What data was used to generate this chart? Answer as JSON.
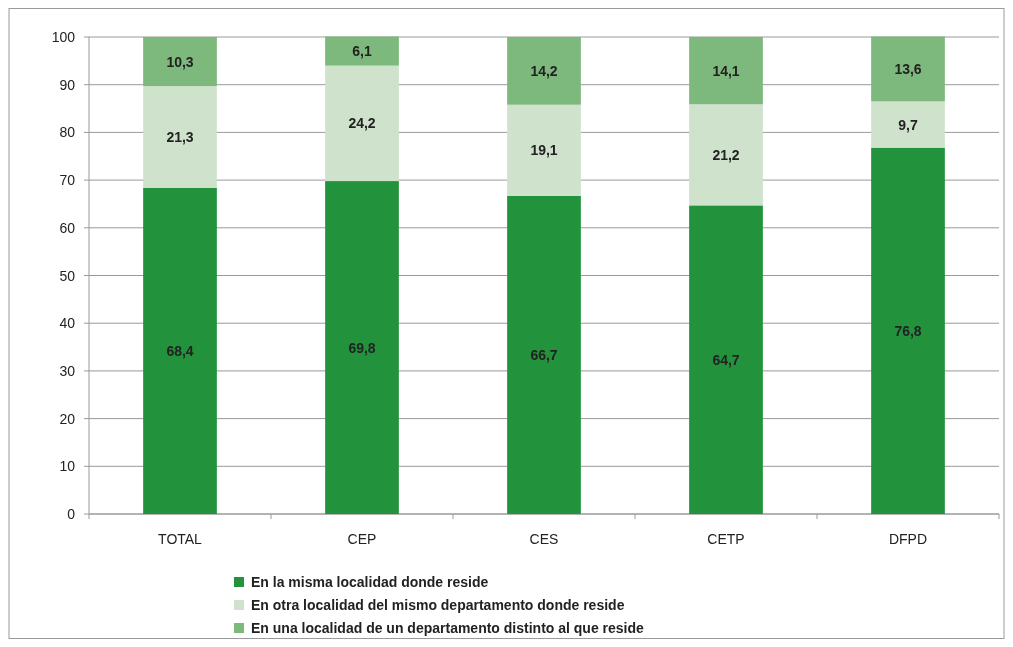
{
  "chart_data": {
    "type": "bar",
    "stacked": true,
    "categories": [
      "TOTAL",
      "CEP",
      "CES",
      "CETP",
      "DFPD"
    ],
    "series": [
      {
        "name": "En la misma localidad donde reside",
        "color": "#23923d",
        "values": [
          68.4,
          69.8,
          66.7,
          64.7,
          76.8
        ],
        "value_labels": [
          "68,4",
          "69,8",
          "66,7",
          "64,7",
          "76,8"
        ]
      },
      {
        "name": "En otra localidad del mismo departamento donde reside",
        "color": "#cfe2cc",
        "values": [
          21.3,
          24.2,
          19.1,
          21.2,
          9.7
        ],
        "value_labels": [
          "21,3",
          "24,2",
          "19,1",
          "21,2",
          "9,7"
        ]
      },
      {
        "name": "En una localidad de un departamento distinto al que reside",
        "color": "#7db87d",
        "values": [
          10.3,
          6.1,
          14.2,
          14.1,
          13.6
        ],
        "value_labels": [
          "10,3",
          "6,1",
          "14,2",
          "14,1",
          "13,6"
        ]
      }
    ],
    "ylim": [
      0,
      100
    ],
    "yticks": [
      0,
      10,
      20,
      30,
      40,
      50,
      60,
      70,
      80,
      90,
      100
    ],
    "grid": "y",
    "legend": "bottom"
  }
}
